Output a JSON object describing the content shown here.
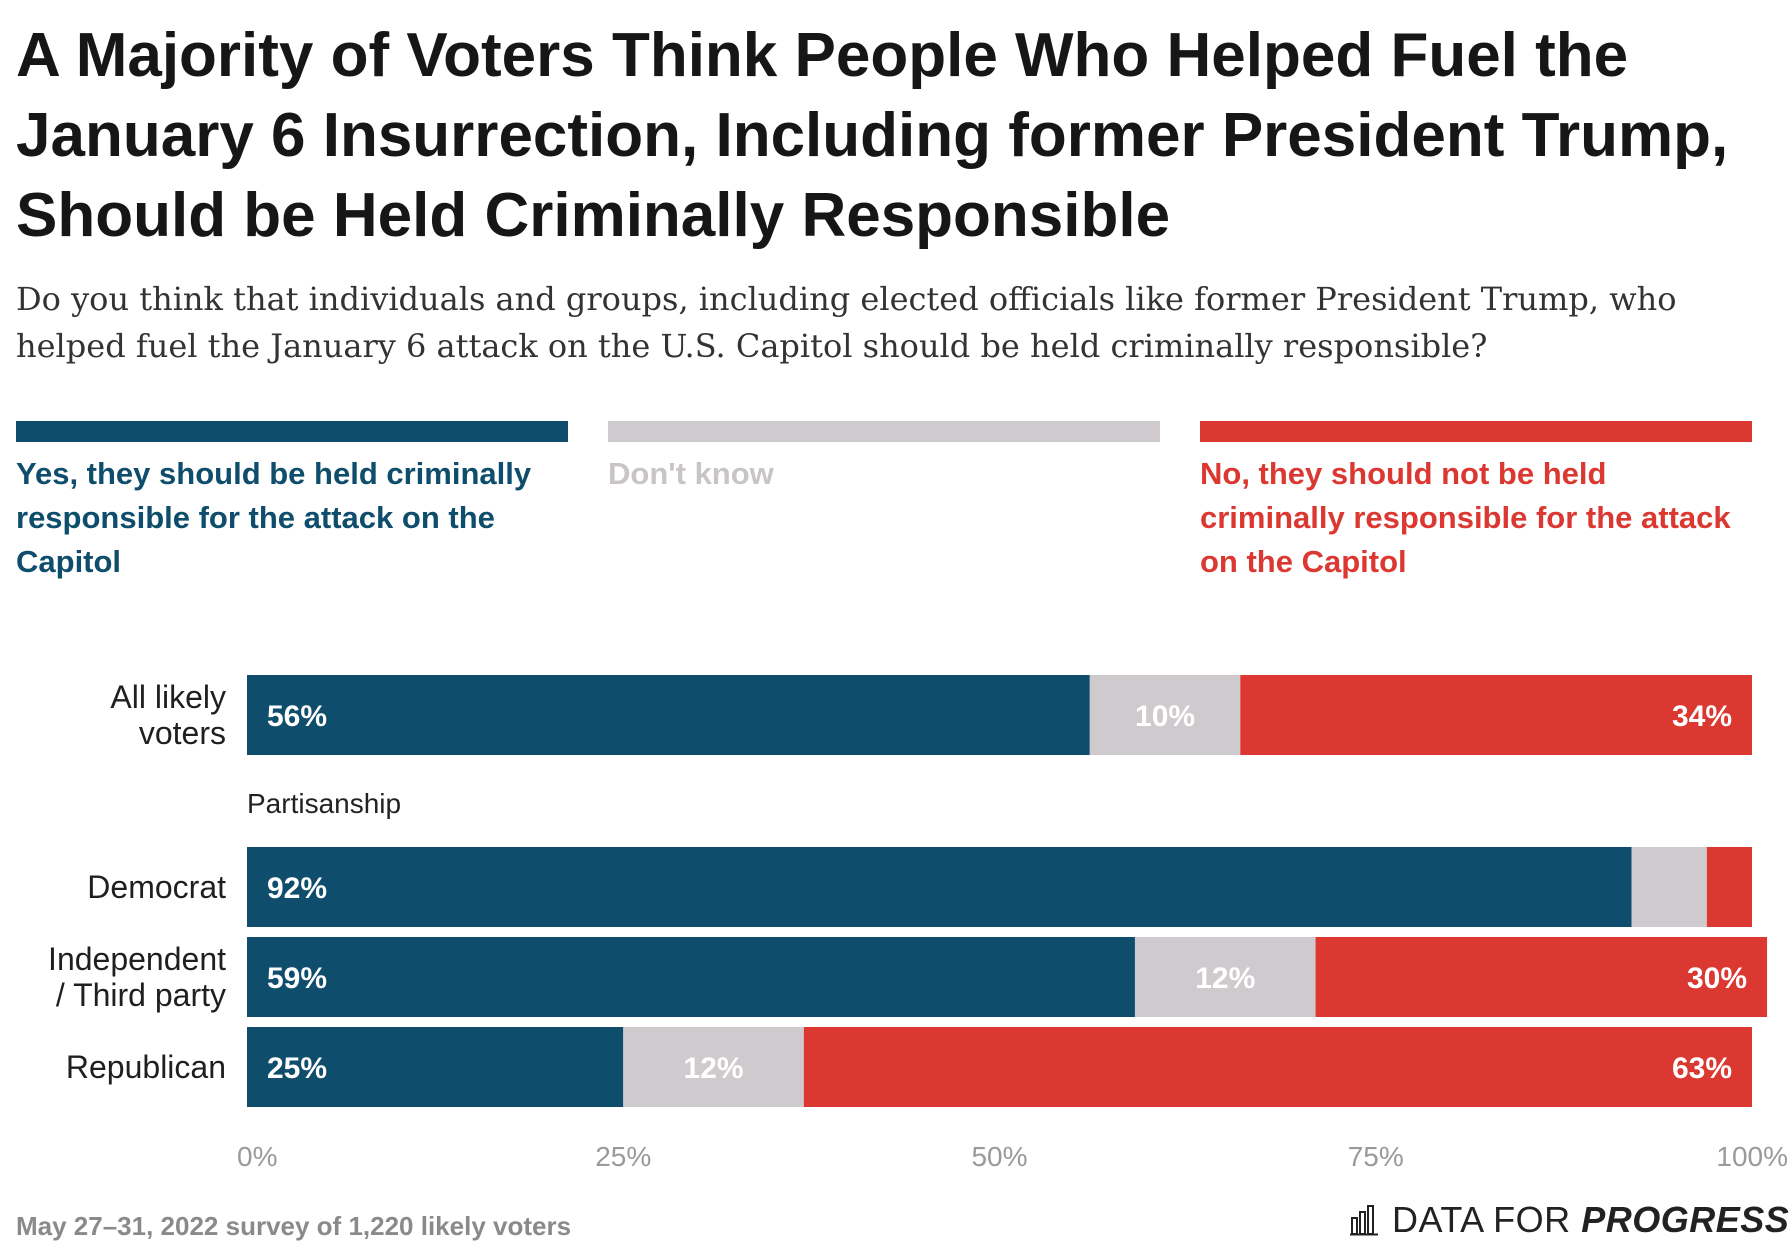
{
  "title": "A Majority of Voters Think People Who Helped Fuel the January 6 Insurrection, Including former President Trump, Should be Held Criminally Responsible",
  "subtitle": "Do you think that individuals and groups, including elected officials like former President Trump, who helped fuel the January 6 attack on the U.S. Capitol should be held criminally responsible?",
  "legend": [
    {
      "label": "Yes, they should be held criminally responsible for the attack on the Capitol",
      "color": "#0e4d6b",
      "text_color": "#0e4d6b"
    },
    {
      "label": "Don't know",
      "color": "#cfcacd",
      "text_color": "#c9c4c7"
    },
    {
      "label": "No, they should not be held criminally responsible for the attack on the Capitol",
      "color": "#dc3832",
      "text_color": "#dc3832"
    }
  ],
  "group_label": "Partisanship",
  "chart_data": {
    "type": "bar",
    "orientation": "horizontal",
    "stacked": true,
    "categories": [
      "All likely voters",
      "Democrat",
      "Independent / Third party",
      "Republican"
    ],
    "series": [
      {
        "name": "Yes, they should be held criminally responsible for the attack on the Capitol",
        "color": "#0e4d6b",
        "values": [
          56,
          92,
          59,
          25
        ],
        "labels": [
          "56%",
          "92%",
          "59%",
          "25%"
        ]
      },
      {
        "name": "Don't know",
        "color": "#cfcacd",
        "values": [
          10,
          5,
          12,
          12
        ],
        "labels": [
          "10%",
          "",
          "12%",
          "12%"
        ]
      },
      {
        "name": "No, they should not be held criminally responsible for the attack on the Capitol",
        "color": "#dc3832",
        "values": [
          34,
          3,
          30,
          63
        ],
        "labels": [
          "34%",
          "",
          "30%",
          "63%"
        ]
      }
    ],
    "xlim": [
      0,
      100
    ],
    "xticks": [
      "0%",
      "25%",
      "50%",
      "75%",
      "100%"
    ],
    "grid": false
  },
  "footer": "May 27–31, 2022 survey of 1,220 likely voters",
  "brand": {
    "part1": "DATA FOR ",
    "part2": "PROGRESS",
    "icon": "bar-chart-icon"
  }
}
